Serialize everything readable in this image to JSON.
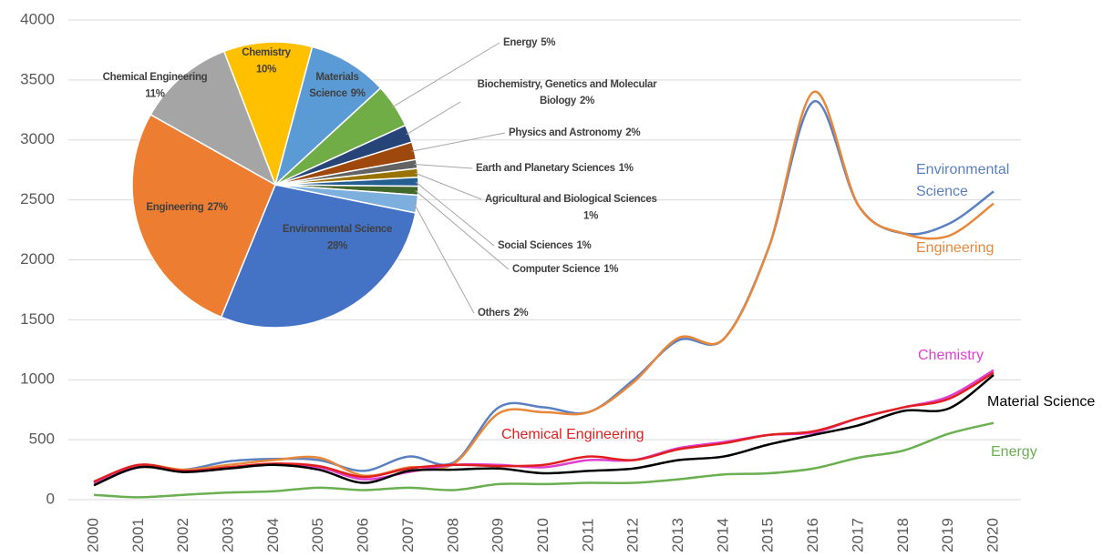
{
  "chart_data": [
    {
      "type": "line",
      "categories": [
        "2000",
        "2001",
        "2002",
        "2003",
        "2004",
        "2005",
        "2006",
        "2007",
        "2008",
        "2009",
        "2010",
        "2011",
        "2012",
        "2013",
        "2014",
        "2015",
        "2016",
        "2017",
        "2018",
        "2019",
        "2020"
      ],
      "ylim": [
        0,
        4000
      ],
      "yticks": [
        0,
        500,
        1000,
        1500,
        2000,
        2500,
        3000,
        3500,
        4000
      ],
      "grid": true,
      "series": [
        {
          "name": "Environmental Science",
          "color": "#5a80c2",
          "values": [
            150,
            280,
            250,
            320,
            340,
            330,
            240,
            360,
            310,
            770,
            770,
            730,
            1000,
            1330,
            1340,
            2100,
            3320,
            2450,
            2220,
            2300,
            2570
          ]
        },
        {
          "name": "Engineering",
          "color": "#e8873a",
          "values": [
            150,
            290,
            250,
            290,
            330,
            350,
            200,
            270,
            300,
            720,
            730,
            730,
            980,
            1350,
            1340,
            2100,
            3400,
            2450,
            2220,
            2200,
            2470
          ]
        },
        {
          "name": "Chemistry",
          "color": "#e040d0",
          "values": [
            140,
            280,
            240,
            270,
            300,
            270,
            170,
            230,
            290,
            290,
            270,
            330,
            330,
            430,
            480,
            540,
            560,
            680,
            770,
            860,
            1080
          ]
        },
        {
          "name": "Chemical Engineering",
          "color": "#e02020",
          "values": [
            150,
            290,
            240,
            270,
            300,
            280,
            190,
            260,
            290,
            280,
            290,
            360,
            330,
            420,
            470,
            540,
            570,
            680,
            770,
            840,
            1060
          ]
        },
        {
          "name": "Material Science",
          "color": "#000000",
          "values": [
            120,
            270,
            230,
            260,
            290,
            250,
            140,
            240,
            250,
            260,
            220,
            240,
            260,
            330,
            360,
            460,
            540,
            620,
            740,
            760,
            1040
          ]
        },
        {
          "name": "Energy",
          "color": "#6aaf50",
          "values": [
            40,
            20,
            40,
            60,
            70,
            100,
            80,
            100,
            80,
            130,
            130,
            140,
            140,
            170,
            210,
            220,
            260,
            350,
            410,
            550,
            640
          ]
        }
      ]
    },
    {
      "type": "pie",
      "categories": [
        "Chemistry",
        "Materials Science",
        "Energy",
        "Biochemistry, Genetics and Molecular Biology",
        "Physics and Astronomy",
        "Earth and Planetary Sciences",
        "Agricultural and Biological Sciences",
        "Social Sciences",
        "Computer Science",
        "Others",
        "Environmental Science",
        "Engineering",
        "Chemical Engineering"
      ],
      "values": [
        10,
        9,
        5,
        2,
        2,
        1,
        1,
        1,
        1,
        2,
        28,
        27,
        11
      ],
      "value_labels": [
        "10%",
        "9%",
        "5%",
        "2%",
        "2%",
        "1%",
        "1%",
        "1%",
        "1%",
        "2%",
        "28%",
        "27%",
        "11%"
      ],
      "colors": [
        "#ffc000",
        "#5b9bd5",
        "#70ad47",
        "#264478",
        "#9e480e",
        "#636363",
        "#997300",
        "#255e91",
        "#43682b",
        "#7cafdd",
        "#4472c4",
        "#ed7d31",
        "#a5a5a5"
      ]
    }
  ]
}
